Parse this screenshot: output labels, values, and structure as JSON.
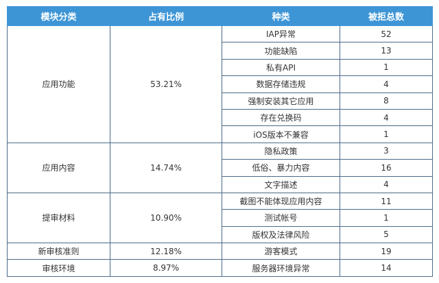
{
  "headers": {
    "module": "模块分类",
    "ratio": "占有比例",
    "type": "种类",
    "count": "被拒总数"
  },
  "groups": [
    {
      "module": "应用功能",
      "ratio": "53.21%",
      "items": [
        {
          "type": "IAP异常",
          "count": "52"
        },
        {
          "type": "功能缺陷",
          "count": "13"
        },
        {
          "type": "私有API",
          "count": "1"
        },
        {
          "type": "数据存储违规",
          "count": "4"
        },
        {
          "type": "强制安装其它应用",
          "count": "8"
        },
        {
          "type": "存在兑换码",
          "count": "4"
        },
        {
          "type": "iOS版本不兼容",
          "count": "1"
        }
      ]
    },
    {
      "module": "应用内容",
      "ratio": "14.74%",
      "items": [
        {
          "type": "隐私政策",
          "count": "3"
        },
        {
          "type": "低俗、暴力内容",
          "count": "16"
        },
        {
          "type": "文字描述",
          "count": "4"
        }
      ]
    },
    {
      "module": "提审材料",
      "ratio": "10.90%",
      "items": [
        {
          "type": "截图不能体现应用内容",
          "count": "11"
        },
        {
          "type": "测试帐号",
          "count": "1"
        },
        {
          "type": "版权及法律风险",
          "count": "5"
        }
      ]
    },
    {
      "module": "新审核准则",
      "ratio": "12.18%",
      "items": [
        {
          "type": "游客模式",
          "count": "19"
        }
      ]
    },
    {
      "module": "审核环境",
      "ratio": "8.97%",
      "items": [
        {
          "type": "服务器环境异常",
          "count": "14"
        }
      ]
    }
  ],
  "colors": {
    "header_bg": "#3d95d6",
    "header_text": "#ffffff",
    "grid_line": "#4a6a88",
    "cell_text": "#333333"
  }
}
